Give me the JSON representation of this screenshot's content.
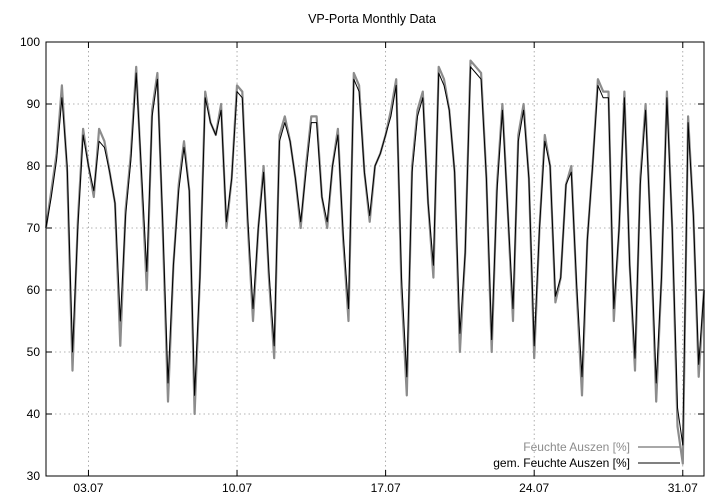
{
  "chart_data": {
    "type": "line",
    "title": "VP-Porta Monthly Data",
    "xlabel": "",
    "ylabel": "",
    "ylim": [
      30,
      100
    ],
    "yticks": [
      30,
      40,
      50,
      60,
      70,
      80,
      90,
      100
    ],
    "xlim_days": [
      1.0,
      32.0
    ],
    "xticks": [
      {
        "label": "03.07",
        "day": 3
      },
      {
        "label": "10.07",
        "day": 10
      },
      {
        "label": "17.07",
        "day": 17
      },
      {
        "label": "24.07",
        "day": 24
      },
      {
        "label": "31.07",
        "day": 31
      }
    ],
    "grid": true,
    "legend_position": "bottom-right",
    "series": [
      {
        "name": "Feuchte Auszen [%]",
        "color": "#8c8c8c",
        "style": "raw",
        "x": [
          1.0,
          1.25,
          1.5,
          1.75,
          2.0,
          2.25,
          2.5,
          2.75,
          3.0,
          3.25,
          3.5,
          3.75,
          4.0,
          4.25,
          4.5,
          4.75,
          5.0,
          5.25,
          5.5,
          5.75,
          6.0,
          6.25,
          6.5,
          6.75,
          7.0,
          7.25,
          7.5,
          7.75,
          8.0,
          8.25,
          8.5,
          8.75,
          9.0,
          9.25,
          9.5,
          9.75,
          10.0,
          10.25,
          10.5,
          10.75,
          11.0,
          11.25,
          11.5,
          11.75,
          12.0,
          12.25,
          12.5,
          12.75,
          13.0,
          13.25,
          13.5,
          13.75,
          14.0,
          14.25,
          14.5,
          14.75,
          15.0,
          15.25,
          15.5,
          15.75,
          16.0,
          16.25,
          16.5,
          16.75,
          17.0,
          17.25,
          17.5,
          17.75,
          18.0,
          18.25,
          18.5,
          18.75,
          19.0,
          19.25,
          19.5,
          19.75,
          20.0,
          20.25,
          20.5,
          20.75,
          21.0,
          21.25,
          21.5,
          21.75,
          22.0,
          22.25,
          22.5,
          22.75,
          23.0,
          23.25,
          23.5,
          23.75,
          24.0,
          24.25,
          24.5,
          24.75,
          25.0,
          25.25,
          25.5,
          25.75,
          26.0,
          26.25,
          26.5,
          26.75,
          27.0,
          27.25,
          27.5,
          27.75,
          28.0,
          28.25,
          28.5,
          28.75,
          29.0,
          29.25,
          29.5,
          29.75,
          30.0,
          30.25,
          30.5,
          30.75,
          31.0,
          31.25,
          31.5,
          31.75,
          32.0
        ],
        "values": [
          70,
          76,
          82,
          93,
          79,
          47,
          71,
          86,
          80,
          75,
          86,
          84,
          79,
          74,
          51,
          73,
          82,
          96,
          78,
          60,
          89,
          95,
          70,
          42,
          64,
          77,
          84,
          76,
          40,
          62,
          92,
          87,
          85,
          90,
          70,
          78,
          93,
          92,
          71,
          55,
          70,
          80,
          62,
          49,
          85,
          88,
          84,
          78,
          70,
          80,
          88,
          88,
          75,
          70,
          80,
          86,
          68,
          55,
          95,
          93,
          79,
          71,
          80,
          82,
          85,
          89,
          94,
          60,
          43,
          80,
          89,
          92,
          74,
          62,
          96,
          94,
          89,
          79,
          50,
          66,
          97,
          96,
          95,
          78,
          50,
          77,
          90,
          73,
          55,
          85,
          90,
          78,
          49,
          70,
          85,
          80,
          58,
          62,
          77,
          80,
          60,
          43,
          68,
          80,
          94,
          92,
          92,
          55,
          70,
          92,
          64,
          47,
          78,
          90,
          68,
          42,
          62,
          92,
          70,
          38,
          32,
          88,
          72,
          46,
          60
        ]
      },
      {
        "name": "gem. Feuchte Auszen [%]",
        "color": "#000000",
        "style": "smoothed",
        "x": [
          1.0,
          1.25,
          1.5,
          1.75,
          2.0,
          2.25,
          2.5,
          2.75,
          3.0,
          3.25,
          3.5,
          3.75,
          4.0,
          4.25,
          4.5,
          4.75,
          5.0,
          5.25,
          5.5,
          5.75,
          6.0,
          6.25,
          6.5,
          6.75,
          7.0,
          7.25,
          7.5,
          7.75,
          8.0,
          8.25,
          8.5,
          8.75,
          9.0,
          9.25,
          9.5,
          9.75,
          10.0,
          10.25,
          10.5,
          10.75,
          11.0,
          11.25,
          11.5,
          11.75,
          12.0,
          12.25,
          12.5,
          12.75,
          13.0,
          13.25,
          13.5,
          13.75,
          14.0,
          14.25,
          14.5,
          14.75,
          15.0,
          15.25,
          15.5,
          15.75,
          16.0,
          16.25,
          16.5,
          16.75,
          17.0,
          17.25,
          17.5,
          17.75,
          18.0,
          18.25,
          18.5,
          18.75,
          19.0,
          19.25,
          19.5,
          19.75,
          20.0,
          20.25,
          20.5,
          20.75,
          21.0,
          21.25,
          21.5,
          21.75,
          22.0,
          22.25,
          22.5,
          22.75,
          23.0,
          23.25,
          23.5,
          23.75,
          24.0,
          24.25,
          24.5,
          24.75,
          25.0,
          25.25,
          25.5,
          25.75,
          26.0,
          26.25,
          26.5,
          26.75,
          27.0,
          27.25,
          27.5,
          27.75,
          28.0,
          28.25,
          28.5,
          28.75,
          29.0,
          29.25,
          29.5,
          29.75,
          30.0,
          30.25,
          30.5,
          30.75,
          31.0,
          31.25,
          31.5,
          31.75,
          32.0
        ],
        "values": [
          70,
          75,
          81,
          91,
          80,
          50,
          70,
          85,
          80,
          76,
          84,
          83,
          79,
          74,
          55,
          72,
          81,
          95,
          79,
          63,
          88,
          94,
          71,
          45,
          64,
          76,
          83,
          76,
          43,
          62,
          91,
          87,
          85,
          89,
          71,
          78,
          92,
          91,
          72,
          57,
          70,
          79,
          63,
          51,
          84,
          87,
          84,
          78,
          71,
          79,
          87,
          87,
          75,
          71,
          80,
          85,
          69,
          57,
          94,
          92,
          79,
          72,
          80,
          82,
          85,
          88,
          93,
          62,
          46,
          79,
          88,
          91,
          74,
          64,
          95,
          93,
          89,
          79,
          53,
          66,
          96,
          95,
          94,
          78,
          52,
          76,
          89,
          73,
          57,
          84,
          89,
          78,
          51,
          70,
          84,
          80,
          59,
          62,
          77,
          79,
          61,
          46,
          68,
          80,
          93,
          91,
          91,
          57,
          70,
          91,
          64,
          49,
          77,
          89,
          68,
          45,
          62,
          91,
          70,
          41,
          35,
          87,
          72,
          48,
          60
        ]
      }
    ]
  }
}
